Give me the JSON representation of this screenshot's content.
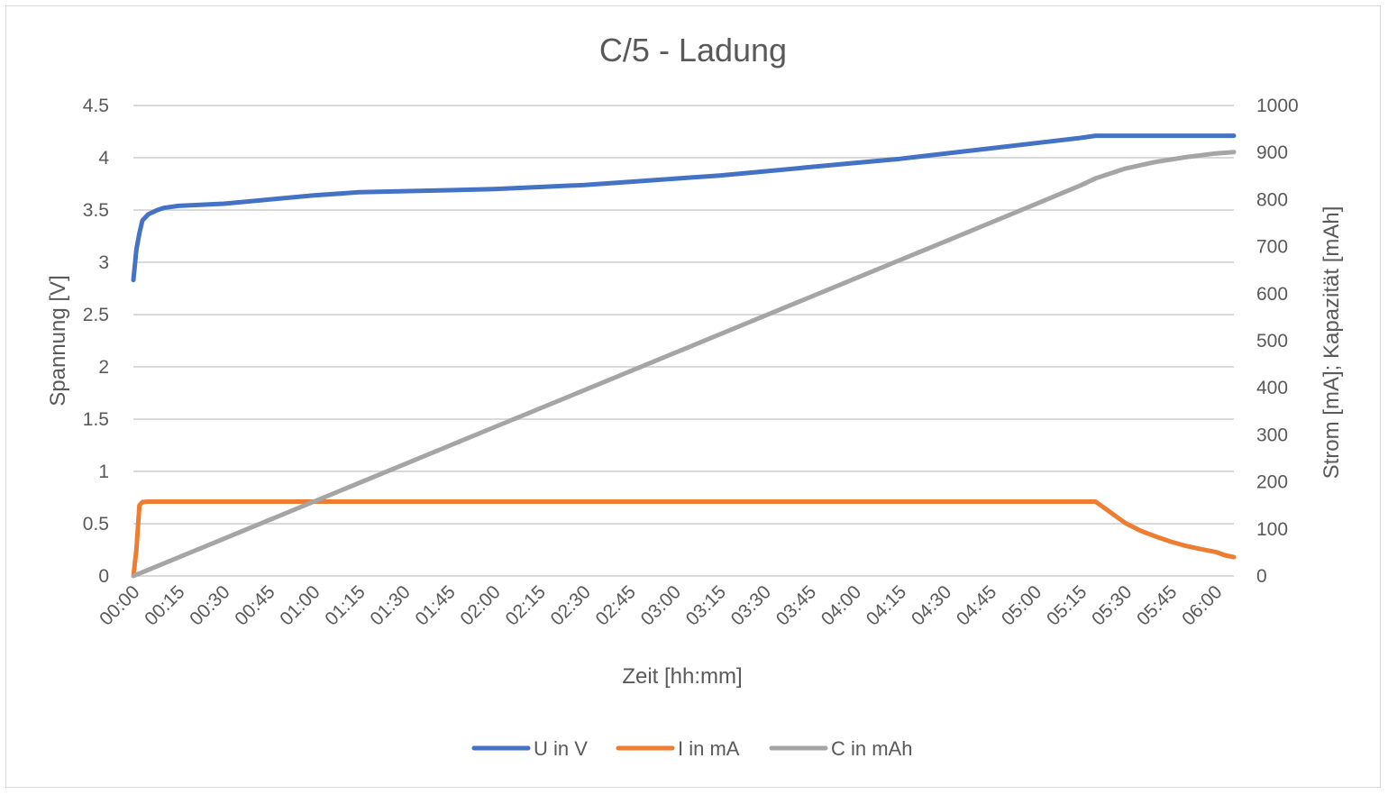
{
  "chart_data": {
    "type": "line",
    "title": "C/5 - Ladung",
    "xlabel": "Zeit [hh:mm]",
    "ylabel": "Spannung [V]",
    "y2label": "Strom [mA]; Kapazität [mAh]",
    "x_unit": "hh:mm",
    "x_range": [
      "00:00",
      "06:06"
    ],
    "ylim": [
      0,
      4.5
    ],
    "y2lim": [
      0,
      1000
    ],
    "x_ticks": [
      "00:00",
      "00:15",
      "00:30",
      "00:45",
      "01:00",
      "01:15",
      "01:30",
      "01:45",
      "02:00",
      "02:15",
      "02:30",
      "02:45",
      "03:00",
      "03:15",
      "03:30",
      "03:45",
      "04:00",
      "04:15",
      "04:30",
      "04:45",
      "05:00",
      "05:15",
      "05:30",
      "05:45",
      "06:00"
    ],
    "y_ticks": [
      "0",
      "0.5",
      "1",
      "1.5",
      "2",
      "2.5",
      "3",
      "3.5",
      "4",
      "4.5"
    ],
    "y2_ticks": [
      "0",
      "100",
      "200",
      "300",
      "400",
      "500",
      "600",
      "700",
      "800",
      "900",
      "1000"
    ],
    "grid": true,
    "legend_position": "bottom",
    "series": [
      {
        "name": "U in V",
        "axis": "left",
        "color": "#4472C4",
        "x": [
          "00:00",
          "00:01",
          "00:02",
          "00:03",
          "00:05",
          "00:08",
          "00:10",
          "00:15",
          "00:30",
          "00:45",
          "01:00",
          "01:15",
          "01:30",
          "01:45",
          "02:00",
          "02:15",
          "02:30",
          "02:45",
          "03:00",
          "03:15",
          "03:30",
          "03:45",
          "04:00",
          "04:15",
          "04:30",
          "04:45",
          "05:00",
          "05:15",
          "05:20",
          "05:30",
          "05:45",
          "06:00",
          "06:06"
        ],
        "values": [
          2.83,
          3.12,
          3.28,
          3.4,
          3.46,
          3.5,
          3.52,
          3.54,
          3.56,
          3.6,
          3.64,
          3.67,
          3.68,
          3.69,
          3.7,
          3.72,
          3.74,
          3.77,
          3.8,
          3.83,
          3.87,
          3.91,
          3.95,
          3.99,
          4.04,
          4.09,
          4.14,
          4.19,
          4.21,
          4.21,
          4.21,
          4.21,
          4.21
        ]
      },
      {
        "name": "I in mA",
        "axis": "right",
        "color": "#ED7D31",
        "x": [
          "00:00",
          "00:01",
          "00:02",
          "00:03",
          "00:05",
          "00:10",
          "05:00",
          "05:15",
          "05:20",
          "05:25",
          "05:30",
          "05:35",
          "05:40",
          "05:45",
          "05:50",
          "05:55",
          "06:00",
          "06:03",
          "06:06"
        ],
        "values": [
          0,
          55,
          150,
          157,
          158,
          158,
          158,
          158,
          158,
          135,
          112,
          96,
          84,
          73,
          64,
          57,
          51,
          44,
          40
        ]
      },
      {
        "name": "C in mAh",
        "axis": "right",
        "color": "#A5A5A5",
        "x": [
          "00:00",
          "00:30",
          "01:00",
          "01:30",
          "02:00",
          "02:30",
          "03:00",
          "03:30",
          "04:00",
          "04:30",
          "05:00",
          "05:15",
          "05:20",
          "05:30",
          "05:40",
          "05:50",
          "06:00",
          "06:06"
        ],
        "values": [
          0,
          79,
          158,
          237,
          316,
          395,
          474,
          553,
          632,
          711,
          790,
          830,
          845,
          866,
          880,
          890,
          898,
          901
        ]
      }
    ]
  }
}
